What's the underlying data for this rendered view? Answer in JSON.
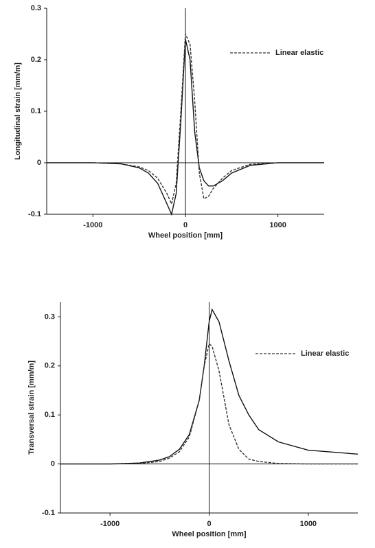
{
  "chart_data": [
    {
      "type": "line",
      "xlabel": "Wheel position [mm]",
      "ylabel": "Longitudinal strain [mm/m]",
      "x": [
        -1500,
        -1000,
        -700,
        -500,
        -400,
        -300,
        -200,
        -150,
        -100,
        -50,
        0,
        50,
        100,
        150,
        200,
        250,
        300,
        400,
        500,
        700,
        1000,
        1500
      ],
      "series": [
        {
          "color": "#111111",
          "values": [
            0,
            0,
            -0.002,
            -0.01,
            -0.02,
            -0.04,
            -0.08,
            -0.1,
            -0.06,
            0.08,
            0.24,
            0.2,
            0.06,
            -0.01,
            -0.035,
            -0.045,
            -0.045,
            -0.035,
            -0.02,
            -0.005,
            0,
            0
          ]
        },
        {
          "name": "Linear elastic",
          "color": "#333333",
          "dashed": true,
          "values": [
            0,
            0,
            -0.002,
            -0.008,
            -0.015,
            -0.03,
            -0.06,
            -0.08,
            -0.04,
            0.1,
            0.25,
            0.23,
            0.12,
            -0.02,
            -0.07,
            -0.065,
            -0.05,
            -0.03,
            -0.015,
            -0.003,
            0,
            0
          ]
        }
      ],
      "xlim": [
        -1500,
        1500
      ],
      "ylim": [
        -0.1,
        0.3
      ],
      "xticks": [
        -1000,
        0,
        1000
      ],
      "yticks": [
        -0.1,
        0,
        0.1,
        0.2,
        0.3
      ],
      "legend": "upper right"
    },
    {
      "type": "line",
      "xlabel": "Wheel position [mm]",
      "ylabel": "Transversal strain [mm/m]",
      "x": [
        -1500,
        -1000,
        -700,
        -500,
        -400,
        -300,
        -200,
        -100,
        -50,
        0,
        30,
        100,
        200,
        300,
        400,
        500,
        700,
        1000,
        1500
      ],
      "series": [
        {
          "color": "#111111",
          "values": [
            0,
            0,
            0.002,
            0.008,
            0.015,
            0.03,
            0.06,
            0.13,
            0.2,
            0.29,
            0.315,
            0.29,
            0.21,
            0.14,
            0.1,
            0.07,
            0.045,
            0.028,
            0.02
          ]
        },
        {
          "name": "Linear elastic",
          "color": "#333333",
          "dashed": true,
          "values": [
            0,
            0,
            0.001,
            0.005,
            0.012,
            0.025,
            0.055,
            0.13,
            0.2,
            0.245,
            0.24,
            0.19,
            0.08,
            0.03,
            0.01,
            0.005,
            0.001,
            0,
            0
          ]
        }
      ],
      "xlim": [
        -1500,
        1500
      ],
      "ylim": [
        -0.1,
        0.33
      ],
      "xticks": [
        -1000,
        0,
        1000
      ],
      "yticks": [
        -0.1,
        0,
        0.1,
        0.2,
        0.3
      ],
      "legend": "upper right"
    }
  ]
}
